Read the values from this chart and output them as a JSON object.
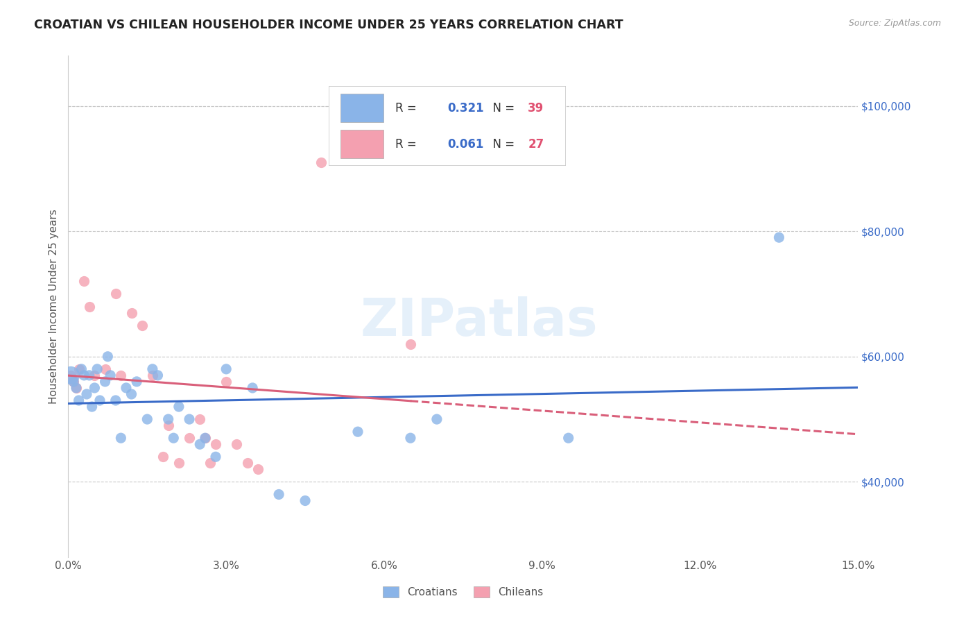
{
  "title": "CROATIAN VS CHILEAN HOUSEHOLDER INCOME UNDER 25 YEARS CORRELATION CHART",
  "source": "Source: ZipAtlas.com",
  "ylabel": "Householder Income Under 25 years",
  "xlabel_vals": [
    0.0,
    3.0,
    6.0,
    9.0,
    12.0,
    15.0
  ],
  "ylabel_vals": [
    40000,
    60000,
    80000,
    100000
  ],
  "xlim": [
    0.0,
    15.0
  ],
  "ylim": [
    28000,
    108000
  ],
  "croatian_R": 0.321,
  "croatian_N": 39,
  "chilean_R": 0.061,
  "chilean_N": 27,
  "croatian_color": "#8ab4e8",
  "chilean_color": "#f4a0b0",
  "croatian_line_color": "#3a6bc8",
  "chilean_line_color": "#d95f7a",
  "croatian_x": [
    0.05,
    0.1,
    0.15,
    0.2,
    0.25,
    0.3,
    0.35,
    0.4,
    0.45,
    0.5,
    0.55,
    0.6,
    0.7,
    0.75,
    0.8,
    0.9,
    1.0,
    1.1,
    1.2,
    1.3,
    1.5,
    1.6,
    1.7,
    1.9,
    2.0,
    2.1,
    2.3,
    2.5,
    2.6,
    2.8,
    3.0,
    3.5,
    4.0,
    4.5,
    5.5,
    6.5,
    7.0,
    9.5,
    13.5
  ],
  "croatian_y": [
    57000,
    56000,
    55000,
    53000,
    58000,
    57000,
    54000,
    57000,
    52000,
    55000,
    58000,
    53000,
    56000,
    60000,
    57000,
    53000,
    47000,
    55000,
    54000,
    56000,
    50000,
    58000,
    57000,
    50000,
    47000,
    52000,
    50000,
    46000,
    47000,
    44000,
    58000,
    55000,
    38000,
    37000,
    48000,
    47000,
    50000,
    47000,
    79000
  ],
  "chilean_x": [
    0.05,
    0.1,
    0.15,
    0.2,
    0.3,
    0.4,
    0.5,
    0.7,
    0.9,
    1.0,
    1.2,
    1.4,
    1.6,
    1.8,
    1.9,
    2.1,
    2.3,
    2.5,
    2.6,
    2.7,
    2.8,
    3.0,
    3.2,
    3.4,
    3.6,
    4.8,
    6.5
  ],
  "chilean_y": [
    57000,
    56000,
    55000,
    58000,
    72000,
    68000,
    57000,
    58000,
    70000,
    57000,
    67000,
    65000,
    57000,
    44000,
    49000,
    43000,
    47000,
    50000,
    47000,
    43000,
    46000,
    56000,
    46000,
    43000,
    42000,
    91000,
    62000
  ],
  "croatian_size": 120,
  "croatian_size_large": 350,
  "chilean_size": 120,
  "watermark": "ZIPatlas",
  "background_color": "#ffffff",
  "grid_color": "#c8c8c8"
}
